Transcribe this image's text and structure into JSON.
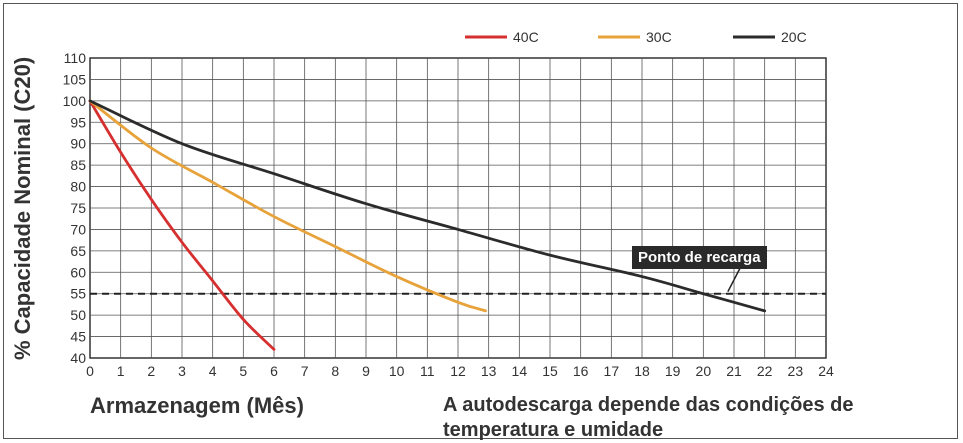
{
  "chart_data": {
    "type": "line",
    "xlabel": "Armazenagem (Mês)",
    "ylabel": "% Capacidade Nominal (C20)",
    "note": "A autodescarga depende das condições de temperatura e umidade",
    "annotation": "Ponto de recarga",
    "xlim": [
      0,
      24
    ],
    "ylim": [
      40,
      110
    ],
    "x_ticks": [
      "0",
      "1",
      "2",
      "3",
      "4",
      "5",
      "6",
      "7",
      "8",
      "9",
      "10",
      "11",
      "12",
      "13",
      "14",
      "15",
      "16",
      "17",
      "18",
      "19",
      "20",
      "21",
      "22",
      "23",
      "24"
    ],
    "y_ticks": [
      "40",
      "45",
      "50",
      "55",
      "60",
      "65",
      "70",
      "75",
      "80",
      "85",
      "90",
      "95",
      "100",
      "105",
      "110"
    ],
    "grid": true,
    "legend_position": "top-right",
    "reference_line": {
      "y": 55,
      "style": "dashed"
    },
    "series": [
      {
        "name": "40C",
        "color": "#d62f2f",
        "x": [
          0,
          1,
          2,
          3,
          4,
          5,
          6
        ],
        "y": [
          100,
          88,
          77,
          67,
          58,
          49,
          42
        ]
      },
      {
        "name": "30C",
        "color": "#e8a23a",
        "x": [
          0,
          2,
          4,
          6,
          8,
          10,
          12,
          12.9
        ],
        "y": [
          100,
          89,
          81,
          73,
          66,
          59,
          53,
          51
        ]
      },
      {
        "name": "20C",
        "color": "#2b2b2b",
        "x": [
          0,
          3,
          6,
          9,
          12,
          15,
          18,
          20,
          22
        ],
        "y": [
          100,
          90,
          83,
          76,
          70,
          64,
          59,
          55,
          51
        ]
      }
    ]
  }
}
